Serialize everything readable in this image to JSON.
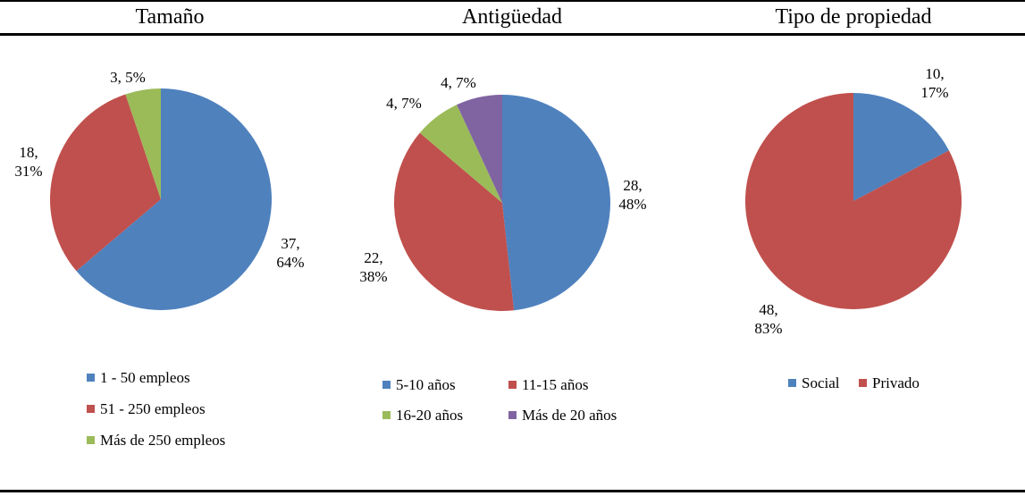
{
  "colors": {
    "blue": "#4F81BD",
    "red": "#C0504D",
    "green": "#9BBB59",
    "purple": "#8064A2"
  },
  "chart_data": [
    {
      "type": "pie",
      "title": "Tamaño",
      "categories": [
        "1 - 50 empleos",
        "51 - 250 empleos",
        "Más de 250 empleos"
      ],
      "values": [
        37,
        18,
        3
      ],
      "percents": [
        "64%",
        "31%",
        "5%"
      ],
      "legend": "bottom"
    },
    {
      "type": "pie",
      "title": "Antigüedad",
      "categories": [
        "5-10 años",
        "11-15 años",
        "16-20 años",
        "Más de 20 años"
      ],
      "values": [
        28,
        22,
        4,
        4
      ],
      "percents": [
        "48%",
        "38%",
        "7%",
        "7%"
      ],
      "legend": "bottom"
    },
    {
      "type": "pie",
      "title": "Tipo de propiedad",
      "categories": [
        "Social",
        "Privado"
      ],
      "values": [
        10,
        48
      ],
      "percents": [
        "17%",
        "83%"
      ],
      "legend": "bottom"
    }
  ]
}
